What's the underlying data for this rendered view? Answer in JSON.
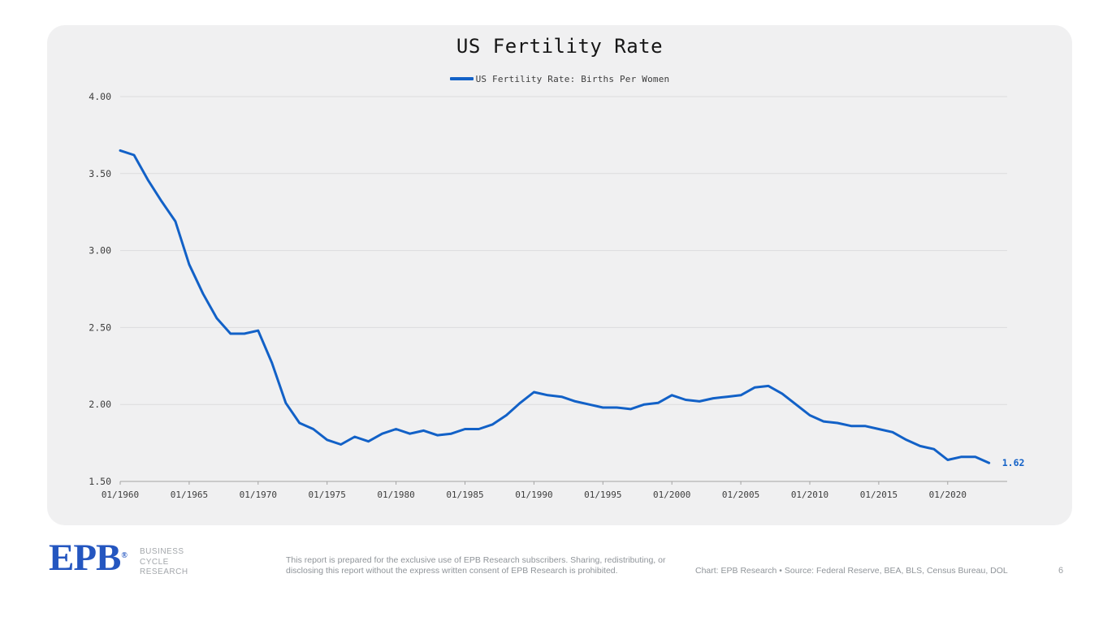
{
  "chart_data": {
    "type": "line",
    "title": "US Fertility Rate",
    "legend_label": "US Fertility Rate: Births Per Women",
    "legend_position": "top-center",
    "grid": "horizontal",
    "xlim_years": [
      1960,
      2023
    ],
    "ylim": [
      1.5,
      4.0
    ],
    "y_ticks": [
      1.5,
      2.0,
      2.5,
      3.0,
      3.5,
      4.0
    ],
    "y_tick_labels": [
      "1.50",
      "2.00",
      "2.50",
      "3.00",
      "3.50",
      "4.00"
    ],
    "x_tick_years": [
      1960,
      1965,
      1970,
      1975,
      1980,
      1985,
      1990,
      1995,
      2000,
      2005,
      2010,
      2015,
      2020
    ],
    "x_tick_labels": [
      "01/1960",
      "01/1965",
      "01/1970",
      "01/1975",
      "01/1980",
      "01/1985",
      "01/1990",
      "01/1995",
      "01/2000",
      "01/2005",
      "01/2010",
      "01/2015",
      "01/2020"
    ],
    "series": [
      {
        "name": "US Fertility Rate: Births Per Women",
        "start_year": 1960,
        "values": [
          3.65,
          3.62,
          3.46,
          3.32,
          3.19,
          2.91,
          2.72,
          2.56,
          2.46,
          2.46,
          2.48,
          2.27,
          2.01,
          1.88,
          1.84,
          1.77,
          1.74,
          1.79,
          1.76,
          1.81,
          1.84,
          1.81,
          1.83,
          1.8,
          1.81,
          1.84,
          1.84,
          1.87,
          1.93,
          2.01,
          2.08,
          2.06,
          2.05,
          2.02,
          2.0,
          1.98,
          1.98,
          1.97,
          2.0,
          2.01,
          2.06,
          2.03,
          2.02,
          2.04,
          2.05,
          2.06,
          2.11,
          2.12,
          2.07,
          2.0,
          1.93,
          1.89,
          1.88,
          1.86,
          1.86,
          1.84,
          1.82,
          1.77,
          1.73,
          1.71,
          1.64,
          1.66,
          1.66,
          1.62
        ]
      }
    ],
    "end_label": "1.62",
    "colors": {
      "line": "#1261c7",
      "end_label": "#1261c7",
      "grid": "#dcdcdd",
      "axis": "#a3a3a3",
      "card_bg": "#f0f0f1"
    }
  },
  "footer": {
    "logo_text": "EPB",
    "logo_reg_mark": "®",
    "logo_subtitle_lines": [
      "BUSINESS",
      "CYCLE",
      "RESEARCH"
    ],
    "disclaimer": "This report is prepared for the exclusive use of EPB Research subscribers. Sharing, redistributing, or disclosing this report without the express written consent of EPB Research is prohibited.",
    "source_line": "Chart: EPB Research  •  Source: Federal Reserve, BEA, BLS, Census Bureau, DOL",
    "page_number": "6"
  }
}
